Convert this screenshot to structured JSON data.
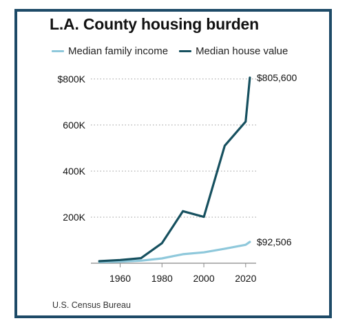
{
  "title": "L.A. County housing burden",
  "source": "U.S. Census Bureau",
  "colors": {
    "frame": "#1d4a67",
    "income": "#8ec8db",
    "house": "#16505f",
    "grid": "#9a9a9a",
    "axis": "#888888"
  },
  "chart_data": {
    "type": "line",
    "title": "L.A. County housing burden",
    "xlabel": "",
    "ylabel": "",
    "xlim": [
      1946,
      2025
    ],
    "ylim": [
      0,
      805600
    ],
    "xticks": [
      1960,
      1980,
      2000,
      2020
    ],
    "yticks": [
      200000,
      400000,
      600000,
      800000
    ],
    "ytick_labels": [
      "200K",
      "400K",
      "600K",
      "$800K"
    ],
    "grid": "horizontal dotted",
    "legend_placement": "top",
    "series": [
      {
        "name": "Median family income",
        "color": "#8ec8db",
        "x": [
          1950,
          1960,
          1970,
          1980,
          1990,
          2000,
          2010,
          2020,
          2022
        ],
        "y": [
          5000,
          7000,
          11000,
          21000,
          39000,
          47000,
          63000,
          80000,
          92506
        ],
        "end_label": "$92,506"
      },
      {
        "name": "Median house value",
        "color": "#16505f",
        "x": [
          1950,
          1960,
          1970,
          1980,
          1990,
          2000,
          2010,
          2020,
          2022
        ],
        "y": [
          9000,
          14000,
          22000,
          87000,
          226000,
          201000,
          510000,
          615000,
          805600
        ],
        "end_label": "$805,600"
      }
    ]
  }
}
